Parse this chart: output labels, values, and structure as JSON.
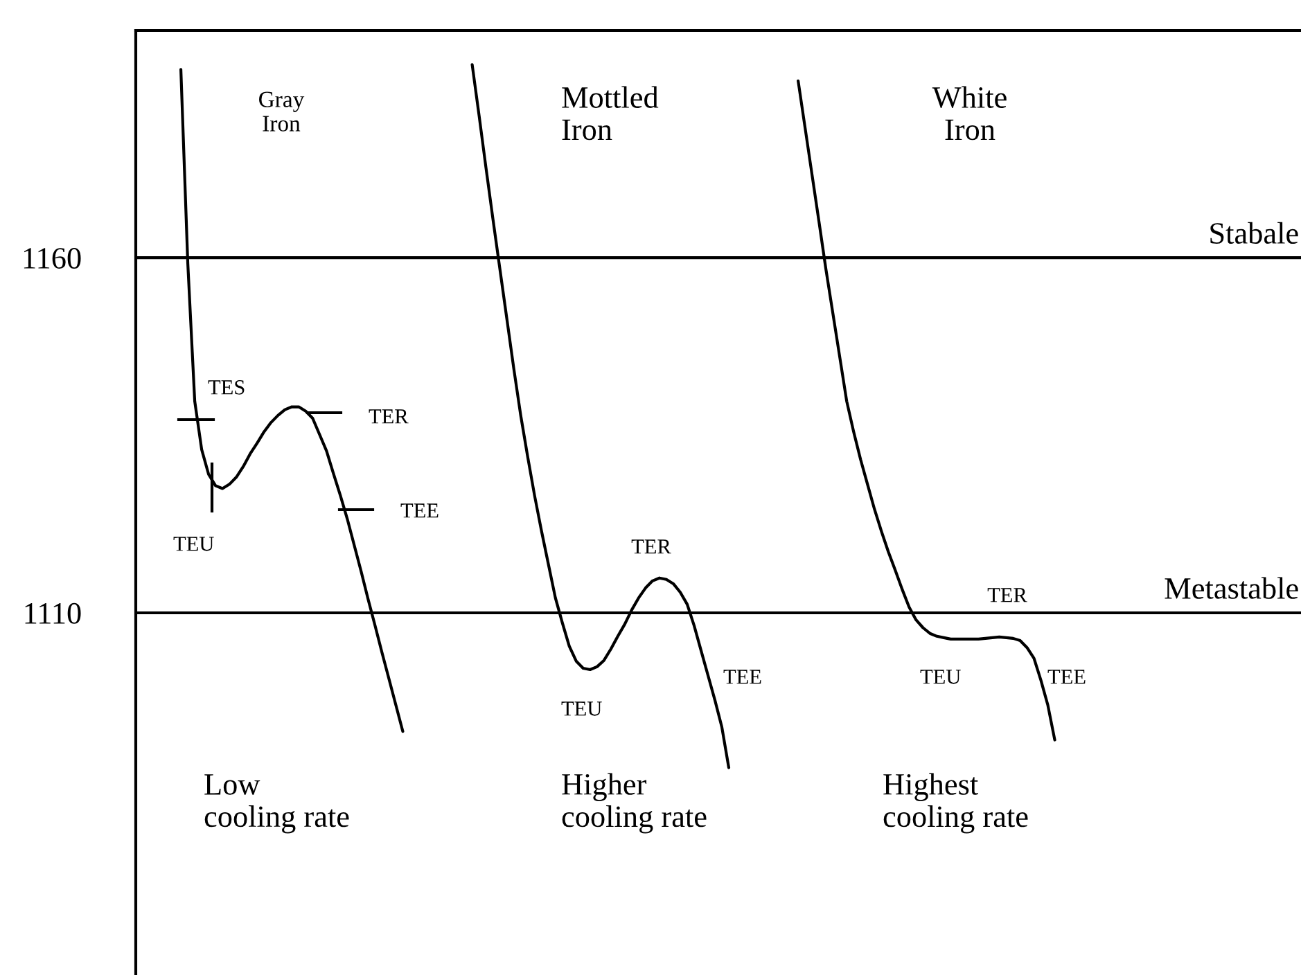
{
  "chart_data": {
    "type": "line",
    "categories": [
      null,
      null,
      null,
      null,
      null,
      null,
      null,
      null,
      null,
      null,
      null,
      null,
      null,
      null,
      null,
      null,
      null,
      null,
      null,
      null,
      null,
      null,
      null,
      null,
      null,
      null,
      null,
      null,
      null,
      null,
      null,
      null,
      null,
      null,
      null,
      null,
      null,
      null,
      null,
      null,
      null,
      null,
      null,
      null,
      null,
      null,
      null,
      null,
      null,
      null,
      null,
      null,
      null,
      null,
      null,
      null,
      null,
      null,
      null,
      null,
      null,
      null,
      null,
      null,
      null,
      null,
      null,
      null,
      null,
      null,
      null,
      null,
      null,
      null,
      null,
      null,
      null,
      null,
      null,
      null,
      null,
      null,
      null,
      null,
      null,
      null,
      null,
      null,
      null,
      null,
      null,
      null,
      null,
      null,
      null,
      null,
      null,
      null,
      null,
      null,
      null,
      null,
      null,
      null,
      null,
      null,
      null,
      null,
      null,
      null,
      null,
      null,
      null,
      null,
      null,
      null,
      null,
      null,
      null,
      null,
      null,
      null,
      null,
      null,
      null,
      null,
      null,
      null,
      null,
      null,
      null,
      null,
      null,
      null,
      null,
      null,
      null,
      null,
      null,
      null,
      null,
      null,
      null,
      null,
      null,
      null,
      null,
      null,
      null,
      null,
      null,
      null,
      null,
      null,
      null,
      null,
      null,
      null,
      null,
      null,
      null,
      null,
      null,
      null,
      null,
      null,
      null,
      null
    ],
    "series": [
      {
        "color": "#000000",
        "values": [
          null,
          null,
          null,
          null,
          null,
          null,
          1186.5,
          1159.2,
          1139.8,
          1133.0,
          1129.5,
          1127.9,
          1127.5,
          1128.1,
          1129.1,
          1130.6,
          1132.4,
          1133.9,
          1135.5,
          1136.8,
          1137.8,
          1138.6,
          1139.0,
          1139.0,
          1138.4,
          1137.4,
          1135.1,
          1132.8,
          1129.6,
          1126.5,
          1123.2,
          1119.5,
          1115.8,
          1111.9,
          1108.2,
          1104.4,
          1100.7,
          1097.0,
          1093.3,
          null,
          null,
          null,
          null,
          null,
          null,
          null,
          null,
          null,
          null,
          null,
          null,
          null,
          null,
          null,
          null,
          null,
          null,
          null,
          null,
          null,
          null,
          null,
          null,
          null,
          null,
          null,
          null,
          null,
          null,
          null,
          null,
          null,
          null,
          null,
          null,
          null,
          null,
          null,
          null,
          null,
          null,
          null,
          null,
          null,
          null,
          null,
          null,
          null,
          null,
          null,
          null,
          null,
          null,
          null,
          null,
          null,
          null,
          null,
          null,
          null,
          null,
          null,
          null,
          null,
          null,
          null,
          null,
          null,
          null,
          null,
          null,
          null,
          null,
          null,
          null,
          null,
          null,
          null,
          null,
          null,
          null,
          null,
          null,
          null,
          null,
          null,
          null,
          null,
          null,
          null,
          null,
          null,
          null,
          null,
          null,
          null,
          null,
          null,
          null,
          null,
          null,
          null,
          null,
          null,
          null,
          null,
          null,
          null,
          null,
          null,
          null,
          null,
          null,
          null,
          null,
          null,
          null,
          null,
          null,
          null,
          null,
          null,
          null,
          null,
          null,
          null,
          null,
          null
        ]
      },
      {
        "color": "#000000",
        "values": [
          null,
          null,
          null,
          null,
          null,
          null,
          null,
          null,
          null,
          null,
          null,
          null,
          null,
          null,
          null,
          null,
          null,
          null,
          null,
          null,
          null,
          null,
          null,
          null,
          null,
          null,
          null,
          null,
          null,
          null,
          null,
          null,
          null,
          null,
          null,
          null,
          null,
          null,
          null,
          null,
          null,
          null,
          null,
          null,
          null,
          null,
          null,
          null,
          1187.2,
          1180.0,
          1172.6,
          1165.4,
          1158.4,
          1151.4,
          1144.4,
          1137.8,
          1132.0,
          1126.5,
          1121.5,
          1116.8,
          1112.1,
          1108.6,
          1105.3,
          1103.2,
          1102.2,
          1102.0,
          1102.4,
          1103.3,
          1104.9,
          1106.7,
          1108.4,
          1110.4,
          1112.1,
          1113.5,
          1114.5,
          1114.9,
          1114.7,
          1114.1,
          1112.9,
          1111.2,
          1108.2,
          1104.7,
          1101.2,
          1097.7,
          1093.9,
          1088.2,
          null,
          null,
          null,
          null,
          null,
          null,
          null,
          null,
          null,
          null,
          null,
          null,
          null,
          null,
          null,
          null,
          null,
          null,
          null,
          null,
          null,
          null,
          null,
          null,
          null,
          null,
          null,
          null,
          null,
          null,
          null,
          null,
          null,
          null,
          null,
          null,
          null,
          null,
          null,
          null,
          null,
          null,
          null,
          null,
          null,
          null,
          null,
          null,
          null,
          null,
          null,
          null,
          null,
          null,
          null,
          null,
          null,
          null,
          null,
          null,
          null,
          null,
          null,
          null,
          null,
          null,
          null,
          null,
          null,
          null,
          null,
          null,
          null,
          null,
          null,
          null,
          null,
          null,
          null,
          null,
          null,
          null
        ]
      },
      {
        "color": "#000000",
        "values": [
          null,
          null,
          null,
          null,
          null,
          null,
          null,
          null,
          null,
          null,
          null,
          null,
          null,
          null,
          null,
          null,
          null,
          null,
          null,
          null,
          null,
          null,
          null,
          null,
          null,
          null,
          null,
          null,
          null,
          null,
          null,
          null,
          null,
          null,
          null,
          null,
          null,
          null,
          null,
          null,
          null,
          null,
          null,
          null,
          null,
          null,
          null,
          null,
          null,
          null,
          null,
          null,
          null,
          null,
          null,
          null,
          null,
          null,
          null,
          null,
          null,
          null,
          null,
          null,
          null,
          null,
          null,
          null,
          null,
          null,
          null,
          null,
          null,
          null,
          null,
          null,
          null,
          null,
          null,
          null,
          null,
          null,
          null,
          null,
          null,
          null,
          null,
          null,
          null,
          null,
          null,
          null,
          null,
          null,
          null,
          1184.9,
          1178.3,
          1171.7,
          1165.1,
          1158.4,
          1152.2,
          1146.0,
          1139.8,
          1135.5,
          1131.6,
          1128.1,
          1124.6,
          1121.5,
          1118.6,
          1116.0,
          1113.3,
          1110.8,
          1109.0,
          1107.9,
          1107.1,
          1106.7,
          1106.5,
          1106.3,
          1106.3,
          1106.3,
          1106.3,
          1106.3,
          1106.4,
          1106.5,
          1106.6,
          1106.5,
          1106.4,
          1106.1,
          1105.1,
          1103.6,
          1100.5,
          1097.0,
          1092.1,
          null,
          null,
          null,
          null,
          null,
          null,
          null,
          null,
          null,
          null,
          null,
          null,
          null,
          null,
          null,
          null,
          null,
          null,
          null,
          null,
          null,
          null,
          null,
          null,
          null,
          null,
          null,
          null,
          null,
          null,
          null,
          null,
          null,
          null,
          null
        ]
      }
    ],
    "ylim": [
      1059,
      1192
    ],
    "yticks": [
      1110,
      1160
    ],
    "tick_labels": "y",
    "marker": "none",
    "line_style": "solid",
    "ref_lines": [
      {
        "axis": "y",
        "value": 1160,
        "label": "Stabale",
        "color": "#000000"
      },
      {
        "axis": "y",
        "value": 1110,
        "label": "Metastable",
        "color": "#000000"
      }
    ],
    "annotations": [
      "Gray\nIron",
      "Mottled\nIron",
      "White\nIron",
      "TES",
      "TER",
      "TEE",
      "TEU",
      "TER",
      "TEE",
      "TEU",
      "TER",
      "TEU",
      "TEE",
      "Low\ncooling rate",
      "Higher\ncooling rate",
      "Highest\ncooling rate"
    ]
  }
}
